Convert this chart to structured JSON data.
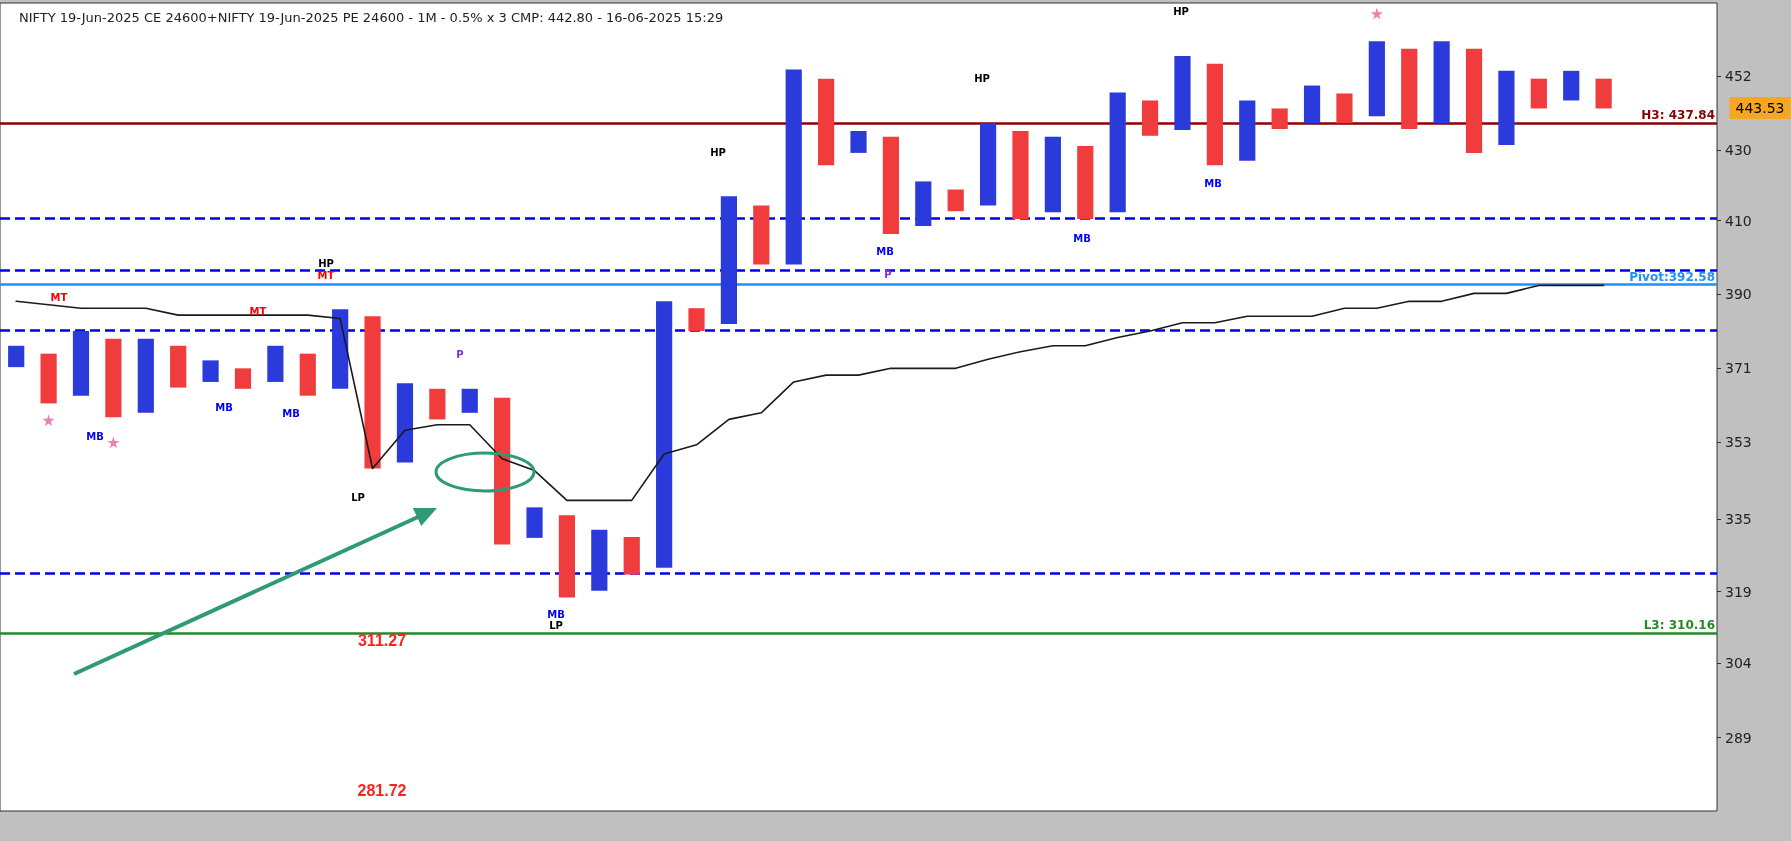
{
  "chart_data": {
    "type": "bar",
    "title": "NIFTY 19-Jun-2025 CE 24600+NIFTY 19-Jun-2025 PE 24600 - 1M - 0.5% x 3 CMP: 442.80 - 16-06-2025 15:29",
    "categories": [
      null,
      null,
      null,
      null,
      null,
      null,
      null,
      null,
      null,
      null,
      null,
      null,
      null,
      null,
      null,
      null,
      null,
      null,
      null,
      null,
      null,
      null,
      null,
      null,
      null,
      null,
      null,
      null,
      null,
      null,
      null,
      null,
      null,
      null,
      null,
      null,
      null,
      null,
      null,
      null,
      null,
      null,
      null,
      null,
      null,
      null,
      null,
      null,
      null,
      null,
      null,
      null,
      null
    ],
    "series": [
      {
        "base": [
          371.3,
          362.3,
          364.2,
          358.9,
          360.0,
          366.2,
          367.6,
          365.9,
          367.6,
          364.2,
          365.9,
          346.7,
          348.1,
          358.4,
          360.0,
          329.3,
          330.8,
          317.7,
          319.2,
          322.7,
          324.2,
          380.5,
          382.3,
          398.0,
          398.0,
          425.6,
          429.2,
          406.3,
          408.5,
          412.6,
          414.2,
          410.4,
          412.3,
          410.4,
          412.3,
          434.2,
          435.9,
          425.6,
          426.9,
          436.2,
          437.9,
          437.9,
          440.0,
          436.2,
          437.9,
          429.2,
          431.5,
          442.3,
          444.7,
          442.3,
          null,
          null,
          null
        ],
        "values": [
          5.4,
          12.4,
          16.3,
          19.6,
          18.5,
          10.5,
          5.4,
          5.1,
          9.1,
          10.5,
          20.2,
          37.6,
          19.2,
          7.5,
          5.9,
          34.4,
          6.9,
          18.2,
          13.4,
          8.3,
          64.0,
          5.9,
          34.5,
          16.2,
          56.1,
          25.7,
          6.4,
          27.6,
          12.5,
          6.1,
          23.7,
          25.2,
          21.6,
          20.8,
          34.8,
          10.5,
          22.4,
          30.3,
          17.8,
          6.1,
          11.3,
          8.9,
          22.9,
          24.3,
          25.0,
          31.3,
          22.2,
          9.0,
          9.0,
          9.0,
          null,
          null,
          null
        ],
        "colors": [
          "#2b3bdb",
          "#f03c3c",
          "#2b3bdb",
          "#f03c3c",
          "#2b3bdb",
          "#f03c3c",
          "#2b3bdb",
          "#f03c3c",
          "#2b3bdb",
          "#f03c3c",
          "#2b3bdb",
          "#f03c3c",
          "#2b3bdb",
          "#f03c3c",
          "#2b3bdb",
          "#f03c3c",
          "#2b3bdb",
          "#f03c3c",
          "#2b3bdb",
          "#f03c3c",
          "#2b3bdb",
          "#f03c3c",
          "#2b3bdb",
          "#f03c3c",
          "#2b3bdb",
          "#f03c3c",
          "#2b3bdb",
          "#f03c3c",
          "#2b3bdb",
          "#f03c3c",
          "#2b3bdb",
          "#f03c3c",
          "#2b3bdb",
          "#f03c3c",
          "#2b3bdb",
          "#f03c3c",
          "#2b3bdb",
          "#f03c3c",
          "#2b3bdb",
          "#f03c3c",
          "#2b3bdb",
          "#f03c3c",
          "#2b3bdb",
          "#f03c3c",
          "#2b3bdb",
          "#f03c3c",
          "#2b3bdb",
          "#f03c3c",
          "#2b3bdb",
          "#f03c3c",
          null,
          null,
          null
        ]
      },
      {
        "type": "line",
        "color": "#1a1a1a",
        "marker": "none",
        "line_style": "solid",
        "values": [
          388.2,
          387.3,
          386.4,
          386.4,
          386.4,
          384.6,
          384.6,
          384.6,
          384.6,
          384.6,
          383.7,
          346.7,
          355.8,
          357.1,
          357.1,
          349.0,
          346.2,
          339.3,
          339.3,
          339.3,
          350.1,
          352.3,
          358.4,
          360.0,
          367.6,
          369.3,
          369.3,
          371.0,
          371.0,
          371.0,
          373.3,
          375.2,
          376.7,
          376.7,
          378.8,
          380.5,
          382.6,
          382.6,
          384.3,
          384.3,
          384.3,
          386.4,
          386.4,
          388.2,
          388.2,
          390.3,
          390.3,
          392.4,
          392.4,
          392.4,
          null,
          null,
          null
        ]
      },
      {
        "type": "scatter",
        "color": "#e75fa0",
        "marker": "star",
        "values": [
          null,
          358.2,
          null,
          352.9,
          null,
          null,
          null,
          null,
          null,
          null,
          null,
          null,
          null,
          null,
          null,
          null,
          null,
          null,
          null,
          null,
          null,
          null,
          null,
          null,
          null,
          null,
          null,
          null,
          null,
          null,
          null,
          null,
          null,
          null,
          null,
          null,
          null,
          null,
          null,
          null,
          null,
          null,
          471.6,
          null,
          null,
          null,
          null,
          null,
          null,
          null,
          null,
          null,
          null
        ]
      }
    ],
    "ylim": [
      275,
      475
    ],
    "yticks": [
      289,
      304,
      319,
      335,
      353,
      371,
      390,
      410,
      430,
      452
    ],
    "log": "y",
    "tick_labels": "y",
    "ref_lines": [
      {
        "axis": "y",
        "value": 437.84,
        "label": "H3: 437.84",
        "color": "#8b0000",
        "line_style": "solid"
      },
      {
        "axis": "y",
        "value": 392.58,
        "label": "Pivot:392.58",
        "color": "#1e90ff",
        "line_style": "solid"
      },
      {
        "axis": "y",
        "value": 310.16,
        "label": "L3: 310.16",
        "color": "#228b22",
        "line_style": "solid"
      },
      {
        "axis": "y",
        "value": 410.7,
        "color": "#0000ee",
        "line_style": "dashed"
      },
      {
        "axis": "y",
        "value": 396.4,
        "color": "#0000ee",
        "line_style": "dashed"
      },
      {
        "axis": "y",
        "value": 380.8,
        "color": "#0000ee",
        "line_style": "dashed"
      },
      {
        "axis": "y",
        "value": 322.9,
        "color": "#0000ee",
        "line_style": "dashed"
      }
    ],
    "annotations": [
      "HP",
      "MT",
      "MT",
      "MT",
      "MB",
      "MB",
      "MB",
      "LP",
      "P",
      "MB",
      "LP",
      "HP",
      "MB",
      "P",
      "HP",
      "MB",
      "HP",
      "MB",
      "443.53",
      "311.27",
      "281.72"
    ]
  }
}
